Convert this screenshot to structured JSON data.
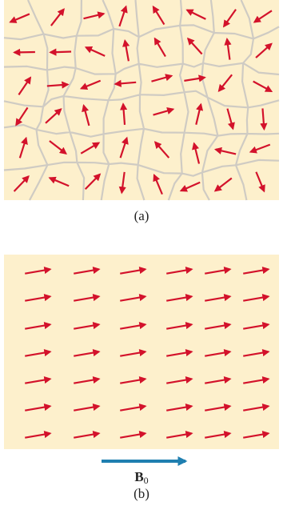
{
  "panels": [
    {
      "label": "(a)"
    },
    {
      "label": "(b)"
    }
  ],
  "field_label": {
    "symbol": "B",
    "subscript": "0"
  }
}
